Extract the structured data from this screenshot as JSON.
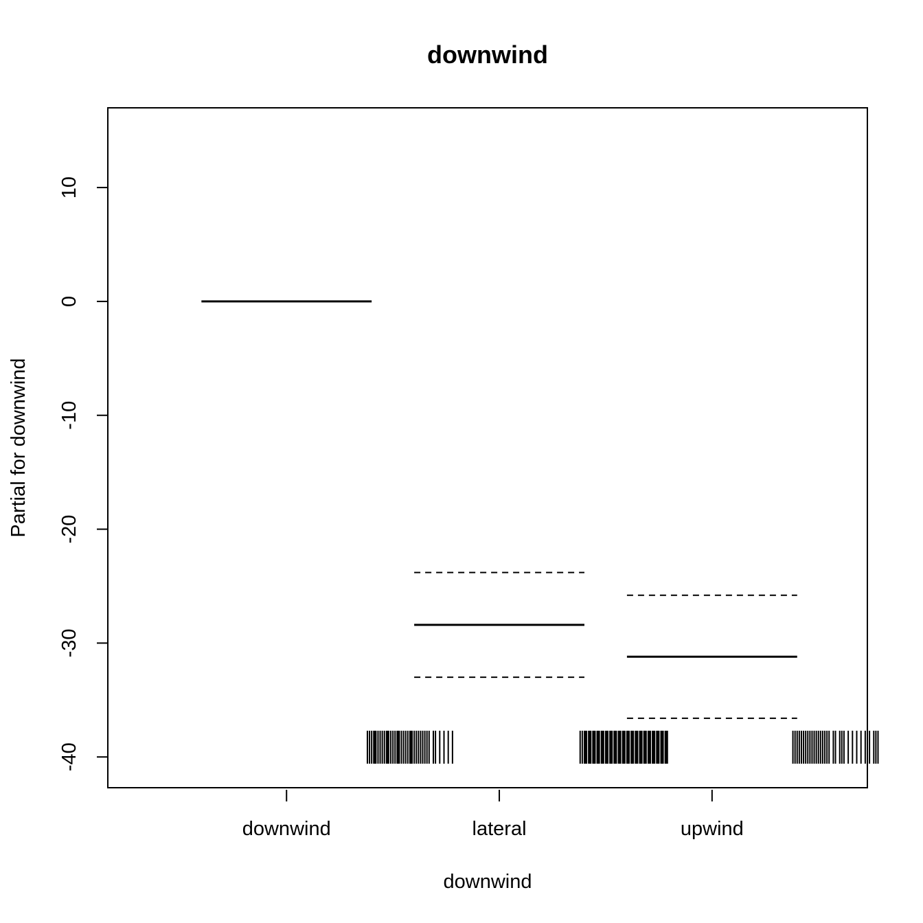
{
  "chart_data": {
    "type": "line",
    "title": "downwind",
    "xlabel": "downwind",
    "ylabel": "Partial for downwind",
    "categories": [
      "downwind",
      "lateral",
      "upwind"
    ],
    "y_ticks": [
      -40,
      -30,
      -20,
      -10,
      0,
      10
    ],
    "ylim": [
      -42.7,
      17
    ],
    "grid": false,
    "series": [
      {
        "values": [
          0,
          -28.4,
          -31.2
        ]
      },
      {
        "values": [
          null,
          -23.8,
          -25.8
        ]
      },
      {
        "values": [
          null,
          -33.0,
          -36.6
        ]
      }
    ],
    "rug": [
      [
        0.38,
        0.39,
        0.4,
        0.41,
        0.415,
        0.42,
        0.43,
        0.44,
        0.45,
        0.46,
        0.47,
        0.475,
        0.48,
        0.49,
        0.5,
        0.51,
        0.52,
        0.525,
        0.53,
        0.54,
        0.55,
        0.56,
        0.57,
        0.58,
        0.585,
        0.59,
        0.6,
        0.61,
        0.62,
        0.63,
        0.64,
        0.65,
        0.66,
        0.67,
        0.69,
        0.7,
        0.72,
        0.74,
        0.76,
        0.78
      ],
      [
        1.38,
        1.39,
        1.4,
        1.405,
        1.41,
        1.42,
        1.425,
        1.43,
        1.44,
        1.445,
        1.45,
        1.46,
        1.465,
        1.47,
        1.48,
        1.485,
        1.49,
        1.5,
        1.505,
        1.51,
        1.52,
        1.525,
        1.53,
        1.54,
        1.545,
        1.55,
        1.56,
        1.565,
        1.57,
        1.58,
        1.585,
        1.59,
        1.6,
        1.605,
        1.61,
        1.62,
        1.625,
        1.63,
        1.64,
        1.645,
        1.65,
        1.66,
        1.665,
        1.67,
        1.68,
        1.685,
        1.69,
        1.7,
        1.705,
        1.71,
        1.72,
        1.725,
        1.73,
        1.74,
        1.745,
        1.75,
        1.76,
        1.765,
        1.77,
        1.78,
        1.785,
        1.79
      ],
      [
        2.38,
        2.39,
        2.4,
        2.41,
        2.42,
        2.43,
        2.44,
        2.45,
        2.46,
        2.47,
        2.48,
        2.49,
        2.5,
        2.51,
        2.52,
        2.53,
        2.54,
        2.55,
        2.57,
        2.58,
        2.6,
        2.61,
        2.62,
        2.64,
        2.66,
        2.68,
        2.7,
        2.72,
        2.74,
        2.76,
        2.77,
        2.78
      ]
    ]
  }
}
